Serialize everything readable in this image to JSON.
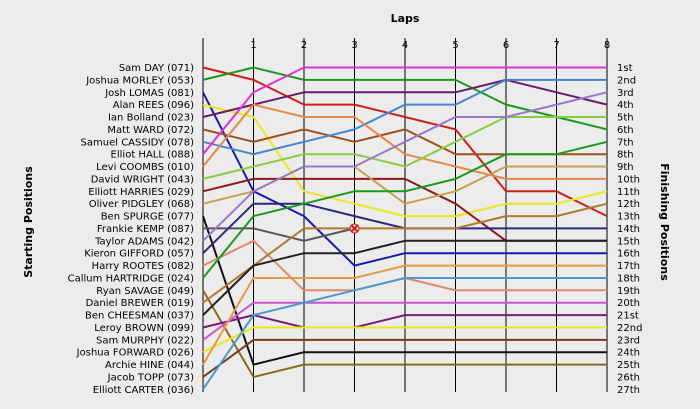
{
  "chart_data": {
    "type": "line",
    "title": "",
    "top_axis_title": "Laps",
    "left_axis_title": "Starting Positions",
    "right_axis_title": "Finishing Positions",
    "x": [
      0,
      1,
      2,
      3,
      4,
      5,
      6,
      7,
      8
    ],
    "x_tick_labels": [
      "1",
      "2",
      "3",
      "4",
      "5",
      "6",
      "7",
      "8"
    ],
    "finishing_labels": [
      "1st",
      "2nd",
      "3rd",
      "4th",
      "5th",
      "6th",
      "7th",
      "8th",
      "9th",
      "10th",
      "11th",
      "12th",
      "13th",
      "14th",
      "15th",
      "16th",
      "17th",
      "18th",
      "19th",
      "20th",
      "21st",
      "22nd",
      "23rd",
      "24th",
      "25th",
      "26th",
      "27th"
    ],
    "series": [
      {
        "name": "Sam DAY (071)",
        "color": "#cc1f1f",
        "positions": [
          1,
          2,
          4,
          4,
          5,
          6,
          11,
          11,
          13
        ]
      },
      {
        "name": "Joshua MORLEY (053)",
        "color": "#1a9a1a",
        "positions": [
          2,
          1,
          2,
          2,
          2,
          2,
          4,
          5,
          6
        ]
      },
      {
        "name": "Josh LOMAS (081)",
        "color": "#1a1ab0",
        "positions": [
          3,
          11,
          13,
          17,
          16,
          16,
          16,
          16,
          16
        ]
      },
      {
        "name": "Alan REES (096)",
        "color": "#e8e820",
        "positions": [
          4,
          5,
          11,
          12,
          13,
          13,
          12,
          12,
          11
        ]
      },
      {
        "name": "Ian Bolland (023)",
        "color": "#6a1a6a",
        "positions": [
          5,
          4,
          3,
          3,
          3,
          3,
          2,
          3,
          4
        ]
      },
      {
        "name": "Matt WARD (072)",
        "color": "#a0501a",
        "positions": [
          6,
          7,
          6,
          7,
          6,
          8,
          8,
          8,
          8
        ]
      },
      {
        "name": "Samuel CASSIDY (078)",
        "color": "#4488cc",
        "positions": [
          7,
          8,
          7,
          6,
          4,
          4,
          2,
          2,
          2
        ]
      },
      {
        "name": "Elliot HALL (088)",
        "color": "#dd33cc",
        "positions": [
          8,
          3,
          1,
          1,
          1,
          1,
          1,
          1,
          1
        ]
      },
      {
        "name": "Levi COOMBS (010)",
        "color": "#e8884a",
        "positions": [
          9,
          4,
          5,
          5,
          8,
          9,
          10,
          10,
          10
        ]
      },
      {
        "name": "David WRIGHT (043)",
        "color": "#88cc44",
        "positions": [
          10,
          9,
          8,
          8,
          9,
          7,
          5,
          5,
          5
        ]
      },
      {
        "name": "Elliott HARRIES (029)",
        "color": "#8b1a1a",
        "positions": [
          11,
          10,
          10,
          10,
          10,
          12,
          15,
          15,
          15
        ]
      },
      {
        "name": "Oliver PIDGLEY (068)",
        "color": "#c8a050",
        "positions": [
          12,
          11,
          9,
          9,
          12,
          11,
          9,
          9,
          9
        ]
      },
      {
        "name": "Ben SPURGE (077)",
        "color": "#101010",
        "positions": [
          13,
          25,
          24,
          24,
          24,
          24,
          24,
          24,
          24
        ]
      },
      {
        "name": "Frankie KEMP (087)",
        "color": "#555555",
        "positions": [
          14,
          14,
          15,
          14
        ]
      },
      {
        "name": "Taylor ADAMS (042)",
        "color": "#9977cc",
        "positions": [
          15,
          11,
          9,
          9,
          7,
          5,
          5,
          4,
          3
        ]
      },
      {
        "name": "Kieron GIFFORD (057)",
        "color": "#2a2a7a",
        "positions": [
          16,
          12,
          12,
          13,
          14,
          14,
          14,
          14,
          14
        ]
      },
      {
        "name": "Harry ROOTES (082)",
        "color": "#e08a6a",
        "positions": [
          17,
          15,
          19,
          19,
          18,
          19,
          19,
          19,
          19
        ]
      },
      {
        "name": "Callum HARTRIDGE (024)",
        "color": "#1a9a1a",
        "positions": [
          18,
          13,
          12,
          11,
          11,
          10,
          8,
          8,
          7
        ]
      },
      {
        "name": "Ryan SAVAGE (049)",
        "color": "#8b6a1a",
        "positions": [
          19,
          26,
          25,
          25,
          25,
          25,
          25,
          25,
          25
        ]
      },
      {
        "name": "Daniel BREWER (019)",
        "color": "#b07a30",
        "positions": [
          20,
          17,
          14,
          14,
          14,
          14,
          13,
          13,
          12
        ]
      },
      {
        "name": "Ben CHEESMAN (037)",
        "color": "#222222",
        "positions": [
          21,
          17,
          16,
          16,
          15,
          15,
          15,
          15,
          15
        ]
      },
      {
        "name": "Leroy BROWN (099)",
        "color": "#7a1a7a",
        "positions": [
          22,
          21,
          22,
          22,
          21,
          21,
          21,
          21,
          21
        ]
      },
      {
        "name": "Sam MURPHY (022)",
        "color": "#cc55cc",
        "positions": [
          23,
          20,
          20,
          20,
          20,
          20,
          20,
          20,
          20
        ]
      },
      {
        "name": "Joshua FORWARD (026)",
        "color": "#e8e820",
        "positions": [
          24,
          22,
          22,
          22,
          22,
          22,
          22,
          22,
          22
        ]
      },
      {
        "name": "Archie HINE (044)",
        "color": "#e89a40",
        "positions": [
          25,
          18,
          18,
          18,
          17,
          17,
          17,
          17,
          17
        ]
      },
      {
        "name": "Jacob TOPP (073)",
        "color": "#7a3a1a",
        "positions": [
          26,
          23,
          23,
          23,
          23,
          23,
          23,
          23,
          23
        ]
      },
      {
        "name": "Elliott CARTER (036)",
        "color": "#4a9ad0",
        "positions": [
          27,
          21,
          20,
          19,
          18,
          18,
          18,
          18,
          18
        ]
      }
    ],
    "markers": [
      {
        "type": "x",
        "series": "Frankie KEMP (087)",
        "x": 3,
        "position": 14,
        "color": "#cc1f1f"
      }
    ]
  }
}
